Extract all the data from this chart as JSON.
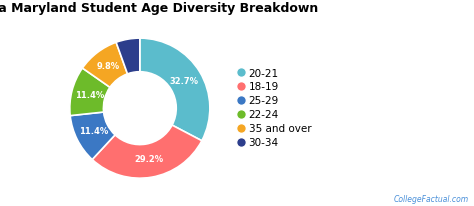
{
  "title": "Loyola Maryland Student Age Diversity Breakdown",
  "slices": [
    32.7,
    29.2,
    11.4,
    11.4,
    9.8,
    5.5
  ],
  "labels": [
    "20-21",
    "18-19",
    "25-29",
    "22-24",
    "35 and over",
    "30-34"
  ],
  "colors": [
    "#5bbccc",
    "#ff6f6f",
    "#3b78c4",
    "#6dbb2a",
    "#f5a623",
    "#2c3e8c"
  ],
  "slice_labels": [
    "32.7%",
    "29.2%",
    "11.4%",
    "11.4%",
    "9.8%",
    ""
  ],
  "watermark": "CollegeFactual.com",
  "background_color": "#ffffff",
  "title_fontsize": 9,
  "legend_fontsize": 7.5
}
